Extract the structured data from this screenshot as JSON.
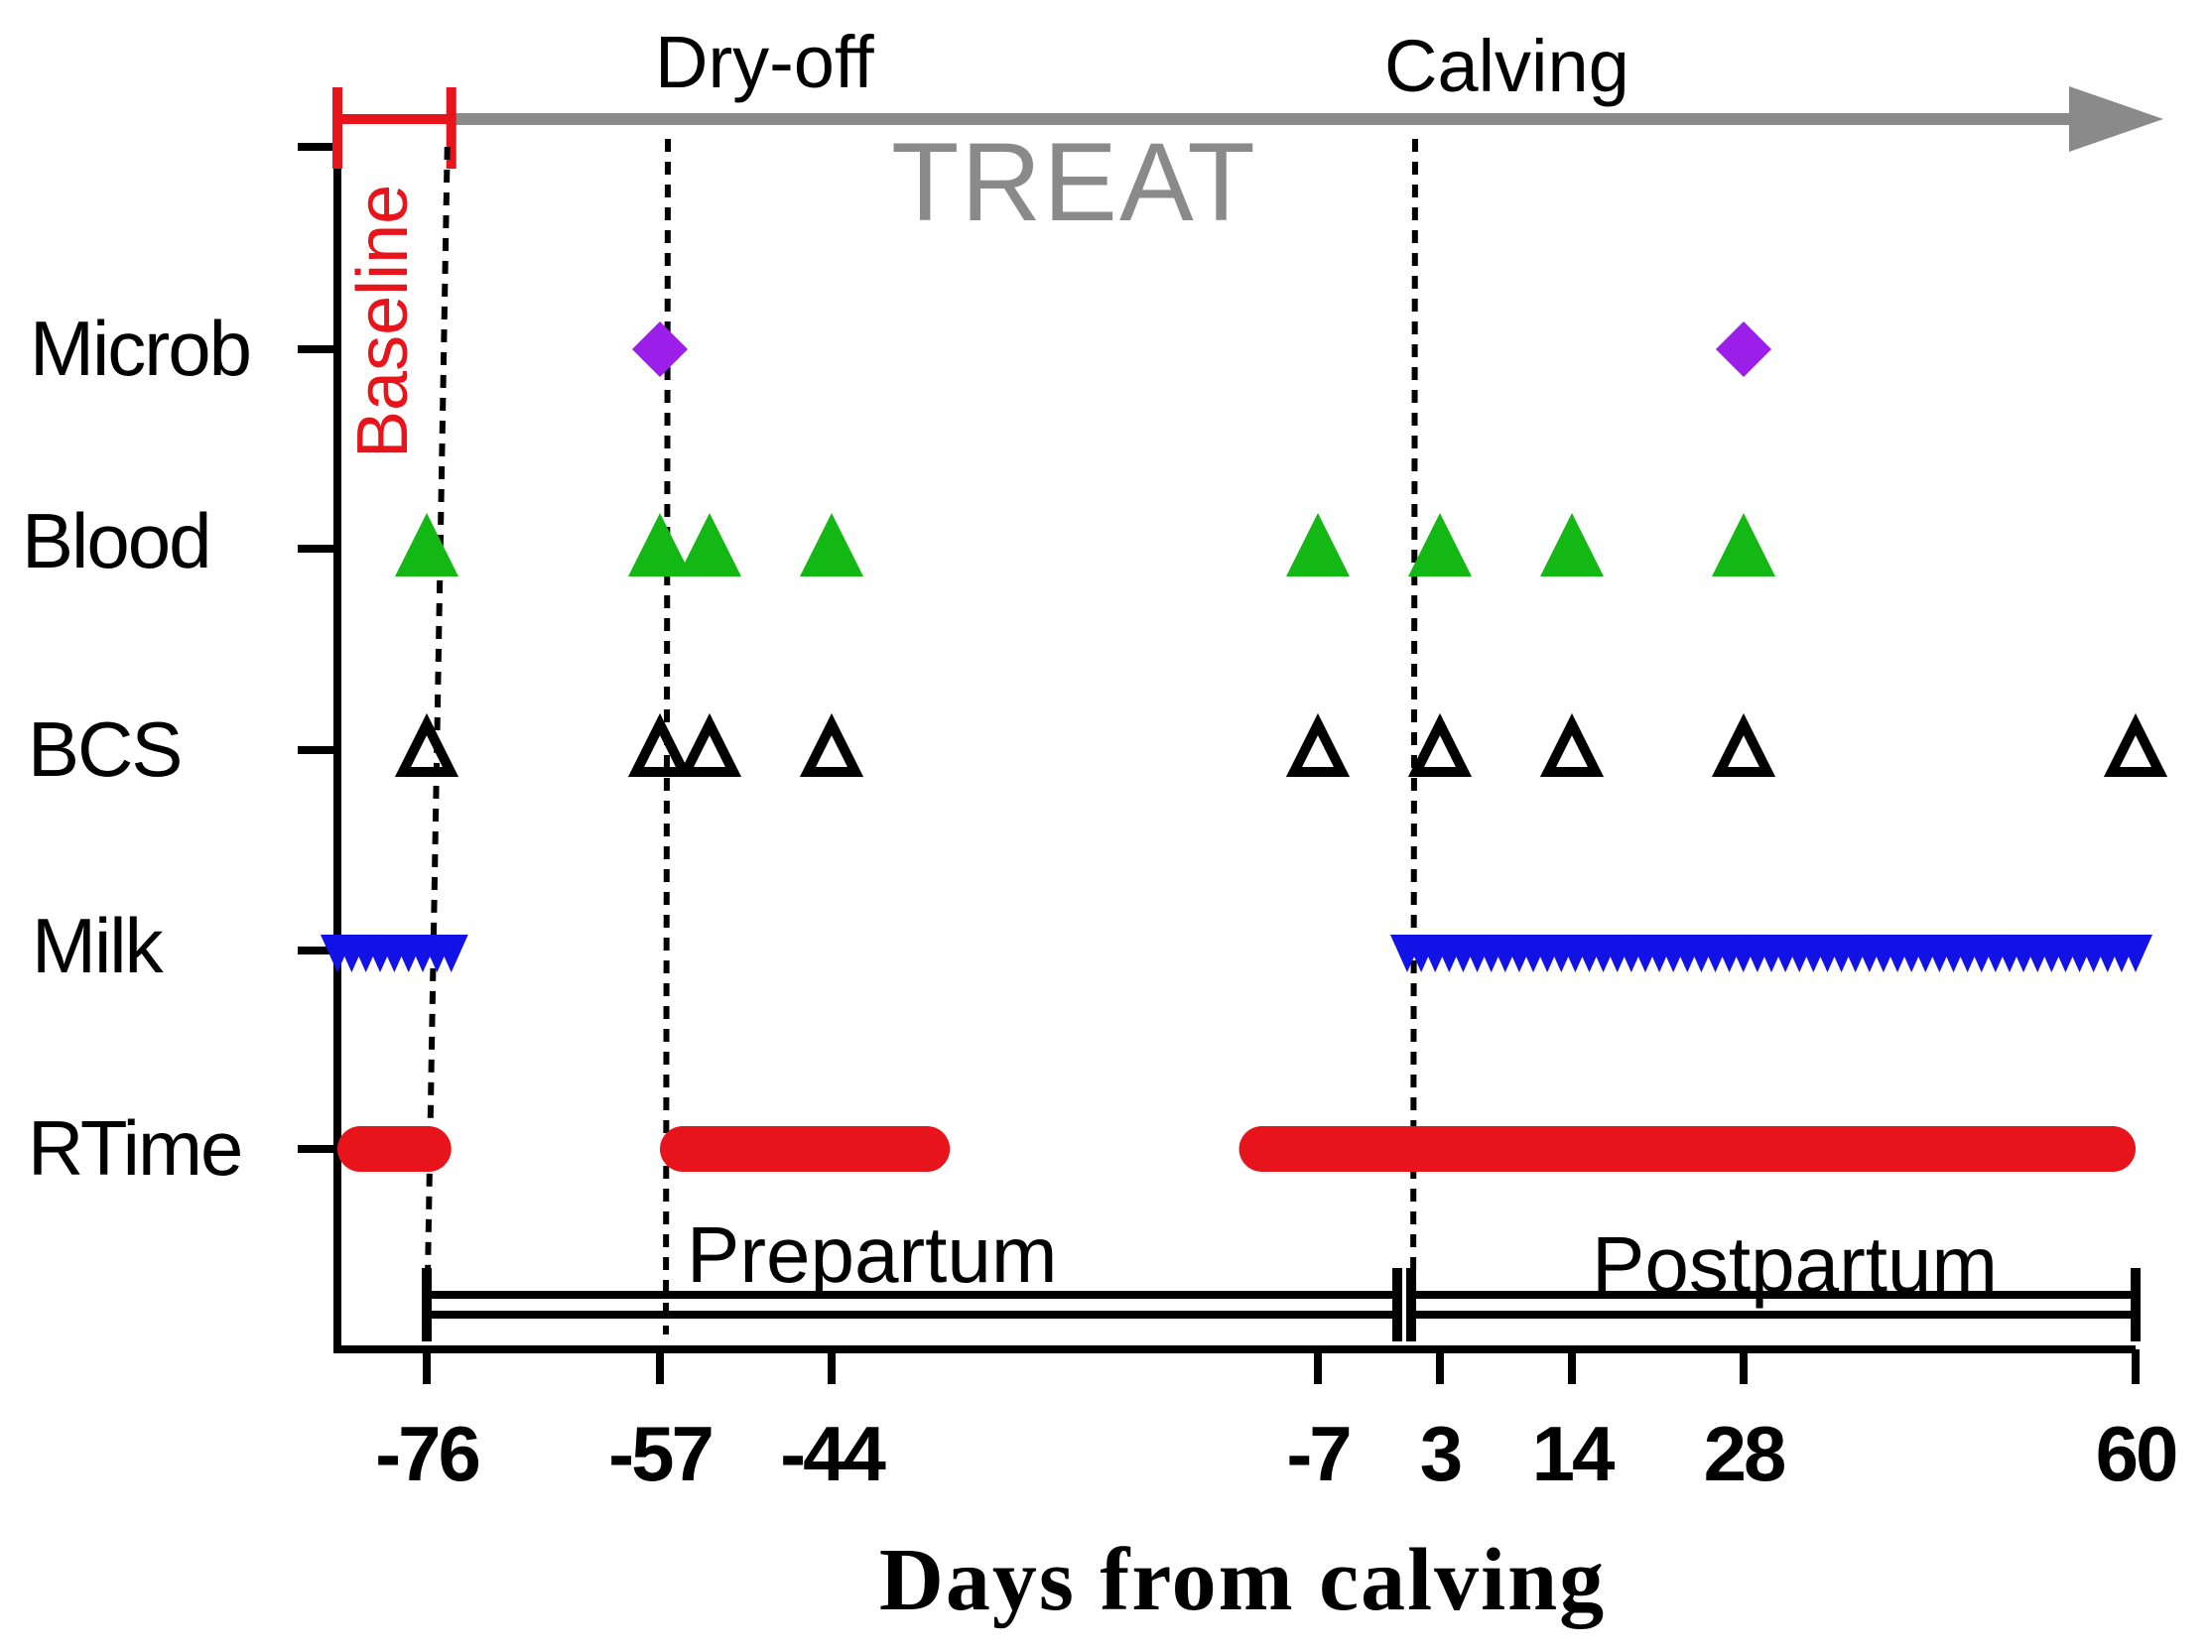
{
  "chart_data": {
    "type": "timeline",
    "xlabel": "Days from calving",
    "x_ticks": [
      -76,
      -57,
      -44,
      -7,
      3,
      14,
      28,
      60
    ],
    "x_tick_labels": [
      "-76",
      "-57",
      "-44",
      "-7",
      "3",
      "14",
      "28",
      "60"
    ],
    "xlim": [
      -83,
      60
    ],
    "rows": [
      "Microb",
      "Blood",
      "BCS",
      "Milk",
      "RTime"
    ],
    "series": [
      {
        "name": "Microb",
        "marker": "diamond",
        "color": "#9b1fe8",
        "days": [
          -57,
          28
        ]
      },
      {
        "name": "Blood",
        "marker": "triangle-filled",
        "color": "#14b814",
        "days": [
          -76,
          -57,
          -53,
          -44,
          -7,
          3,
          14,
          28
        ]
      },
      {
        "name": "BCS",
        "marker": "triangle-open",
        "color": "#000000",
        "days": [
          -76,
          -57,
          -53,
          -44,
          -7,
          3,
          14,
          28,
          60
        ]
      },
      {
        "name": "Milk",
        "marker": "triangle-down",
        "color": "#1212e6",
        "ranges": [
          [
            -83,
            -74
          ],
          [
            0,
            60
          ]
        ]
      },
      {
        "name": "RTime",
        "marker": "circle",
        "color": "#e8141c",
        "ranges": [
          [
            -83,
            -74
          ],
          [
            -57,
            -35
          ],
          [
            -13,
            60
          ]
        ]
      }
    ],
    "events": [
      {
        "label": "Dry-off",
        "day": -57
      },
      {
        "label": "Calving",
        "day": 0
      }
    ],
    "baseline": {
      "label": "Baseline",
      "start": -83,
      "end": -74,
      "color": "#e8141c"
    },
    "treatment": {
      "label": "TREAT",
      "start": -74,
      "end": 60,
      "color": "#8a8a8a"
    },
    "phases": [
      {
        "label": "Prepartum",
        "start": -76,
        "end": 0
      },
      {
        "label": "Postpartum",
        "start": 1,
        "end": 60
      }
    ]
  }
}
